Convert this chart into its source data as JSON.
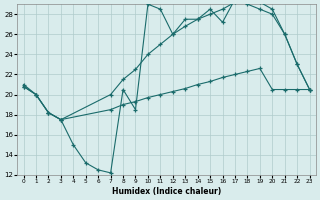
{
  "xlabel": "Humidex (Indice chaleur)",
  "bg_color": "#d9ecec",
  "grid_color": "#b0cccc",
  "line_color": "#1a6b6b",
  "xlim": [
    -0.5,
    23.5
  ],
  "ylim": [
    12,
    29
  ],
  "yticks": [
    12,
    14,
    16,
    18,
    20,
    22,
    24,
    26,
    28
  ],
  "xticks": [
    0,
    1,
    2,
    3,
    4,
    5,
    6,
    7,
    8,
    9,
    10,
    11,
    12,
    13,
    14,
    15,
    16,
    17,
    18,
    19,
    20,
    21,
    22,
    23
  ],
  "line1_x": [
    0,
    1,
    2,
    3,
    4,
    5,
    6,
    7,
    8,
    9,
    10,
    11,
    12,
    13,
    14,
    15,
    16,
    17,
    18,
    19,
    20,
    21,
    22,
    23
  ],
  "line1_y": [
    21.0,
    20.0,
    18.2,
    17.5,
    15.0,
    13.2,
    12.5,
    12.2,
    20.5,
    18.5,
    29.0,
    28.5,
    26.0,
    27.5,
    27.5,
    28.5,
    27.2,
    29.5,
    29.0,
    28.5,
    28.0,
    26.0,
    23.0,
    20.5
  ],
  "line2_x": [
    0,
    1,
    2,
    3,
    7,
    8,
    9,
    10,
    11,
    12,
    13,
    14,
    15,
    16,
    17,
    18,
    19,
    20,
    21,
    22,
    23
  ],
  "line2_y": [
    20.8,
    20.0,
    18.2,
    17.5,
    18.5,
    19.0,
    19.3,
    19.7,
    20.0,
    20.3,
    20.6,
    21.0,
    21.3,
    21.7,
    22.0,
    22.3,
    22.6,
    20.5,
    20.5,
    20.5,
    20.5
  ],
  "line3_x": [
    0,
    1,
    2,
    3,
    7,
    8,
    9,
    10,
    11,
    12,
    13,
    14,
    15,
    16,
    17,
    18,
    19,
    20,
    21,
    22,
    23
  ],
  "line3_y": [
    20.8,
    20.0,
    18.2,
    17.5,
    20.0,
    21.5,
    22.5,
    24.0,
    25.0,
    26.0,
    26.8,
    27.5,
    28.0,
    28.5,
    29.2,
    29.3,
    29.2,
    28.5,
    26.0,
    23.0,
    20.5
  ]
}
